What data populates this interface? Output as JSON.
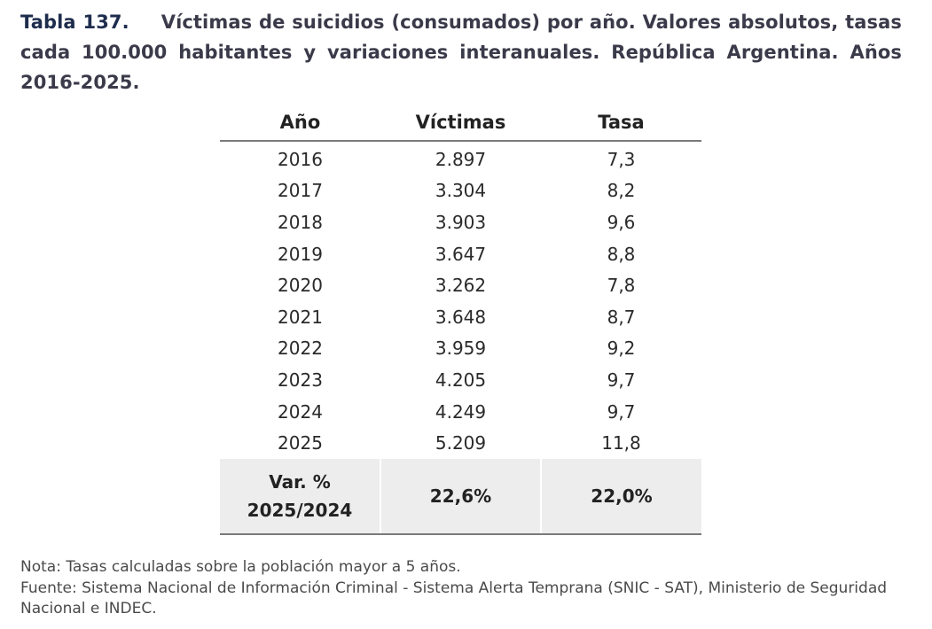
{
  "caption": {
    "number": "Tabla 137.",
    "text": "Víctimas de suicidios (consumados) por año. Valores absolutos, tasas cada 100.000 habitantes y variaciones interanuales. República Argentina. Años 2016-2025."
  },
  "table": {
    "headers": [
      "Año",
      "Víctimas",
      "Tasa"
    ],
    "rows": [
      {
        "year": "2016",
        "victims": "2.897",
        "rate": "7,3"
      },
      {
        "year": "2017",
        "victims": "3.304",
        "rate": "8,2"
      },
      {
        "year": "2018",
        "victims": "3.903",
        "rate": "9,6"
      },
      {
        "year": "2019",
        "victims": "3.647",
        "rate": "8,8"
      },
      {
        "year": "2020",
        "victims": "3.262",
        "rate": "7,8"
      },
      {
        "year": "2021",
        "victims": "3.648",
        "rate": "8,7"
      },
      {
        "year": "2022",
        "victims": "3.959",
        "rate": "9,2"
      },
      {
        "year": "2023",
        "victims": "4.205",
        "rate": "9,7"
      },
      {
        "year": "2024",
        "victims": "4.249",
        "rate": "9,7"
      },
      {
        "year": "2025",
        "victims": "5.209",
        "rate": "11,8"
      }
    ],
    "variation": {
      "label_line1": "Var. %",
      "label_line2": "2025/2024",
      "victims": "22,6%",
      "rate": "22,0%"
    }
  },
  "notes": {
    "note": "Nota: Tasas calculadas sobre la población mayor a 5 años.",
    "source": "Fuente: Sistema Nacional de Información Criminal - Sistema Alerta Temprana (SNIC - SAT), Ministerio de Seguridad Nacional e INDEC."
  }
}
